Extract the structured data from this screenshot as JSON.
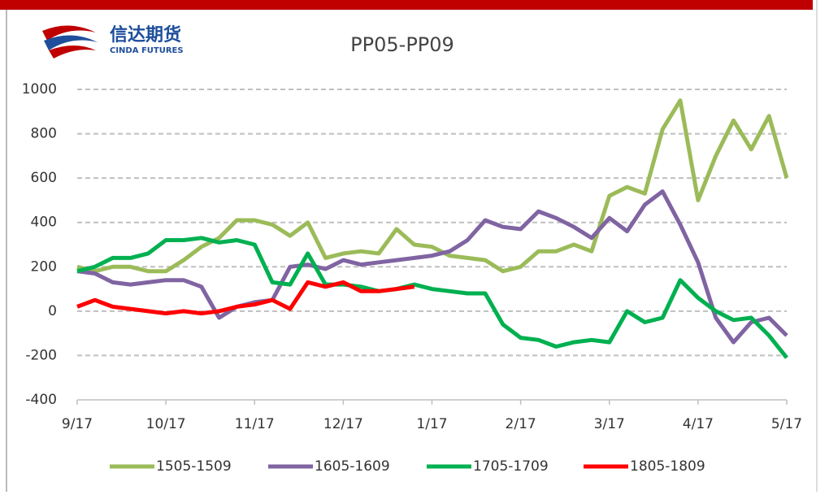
{
  "logo": {
    "text": "信达期货",
    "subtext": "CINDA FUTURES"
  },
  "chart_data": {
    "type": "line",
    "title": "PP05-PP09",
    "x": [
      0,
      0.2,
      0.4,
      0.6,
      0.8,
      1,
      1.2,
      1.4,
      1.6,
      1.8,
      2,
      2.2,
      2.4,
      2.6,
      2.8,
      3,
      3.2,
      3.4,
      3.6,
      3.8,
      4,
      4.2,
      4.4,
      4.6,
      4.8,
      5,
      5.2,
      5.4,
      5.6,
      5.8,
      6,
      6.2,
      6.4,
      6.6,
      6.8,
      7,
      7.2,
      7.4,
      7.6,
      7.8,
      8
    ],
    "xlim": [
      0,
      8
    ],
    "xticks": [
      {
        "value": 0,
        "label": "9/17"
      },
      {
        "value": 1,
        "label": "10/17"
      },
      {
        "value": 2,
        "label": "11/17"
      },
      {
        "value": 3,
        "label": "12/17"
      },
      {
        "value": 4,
        "label": "1/17"
      },
      {
        "value": 5,
        "label": "2/17"
      },
      {
        "value": 6,
        "label": "3/17"
      },
      {
        "value": 7,
        "label": "4/17"
      },
      {
        "value": 8,
        "label": "5/17"
      }
    ],
    "ylim": [
      -400,
      1000
    ],
    "yticks": [
      -400,
      -200,
      0,
      200,
      400,
      600,
      800,
      1000
    ],
    "grid": true,
    "legend": "bottom",
    "series": [
      {
        "name": "1505-1509",
        "color": "#9bbb59",
        "values": [
          200,
          180,
          200,
          200,
          180,
          180,
          230,
          290,
          330,
          410,
          410,
          390,
          340,
          400,
          240,
          260,
          270,
          260,
          370,
          300,
          290,
          250,
          240,
          230,
          180,
          200,
          270,
          270,
          300,
          270,
          520,
          560,
          530,
          820,
          950,
          500,
          700,
          860,
          730,
          880,
          600
        ]
      },
      {
        "name": "1605-1609",
        "color": "#8064a2",
        "values": [
          180,
          170,
          130,
          120,
          130,
          140,
          140,
          110,
          -30,
          20,
          40,
          50,
          200,
          210,
          190,
          230,
          210,
          220,
          230,
          240,
          250,
          270,
          320,
          410,
          380,
          370,
          450,
          420,
          380,
          330,
          420,
          360,
          480,
          540,
          390,
          220,
          -30,
          -140,
          -50,
          -30,
          -110
        ]
      },
      {
        "name": "1705-1709",
        "color": "#00b050",
        "values": [
          180,
          200,
          240,
          240,
          260,
          320,
          320,
          330,
          310,
          320,
          300,
          130,
          120,
          260,
          120,
          120,
          110,
          90,
          100,
          120,
          100,
          90,
          80,
          80,
          -60,
          -120,
          -130,
          -160,
          -140,
          -130,
          -140,
          0,
          -50,
          -30,
          140,
          60,
          0,
          -40,
          -30,
          -110,
          -210
        ]
      },
      {
        "name": "1805-1809",
        "color": "#ff0000",
        "values": [
          20,
          50,
          20,
          10,
          0,
          -10,
          0,
          -10,
          0,
          20,
          30,
          50,
          10,
          130,
          110,
          130,
          90,
          90,
          100,
          110,
          null,
          null,
          null,
          null,
          null,
          null,
          null,
          null,
          null,
          null,
          null,
          null,
          null,
          null,
          null,
          null,
          null,
          null,
          null,
          null,
          null
        ]
      }
    ]
  }
}
